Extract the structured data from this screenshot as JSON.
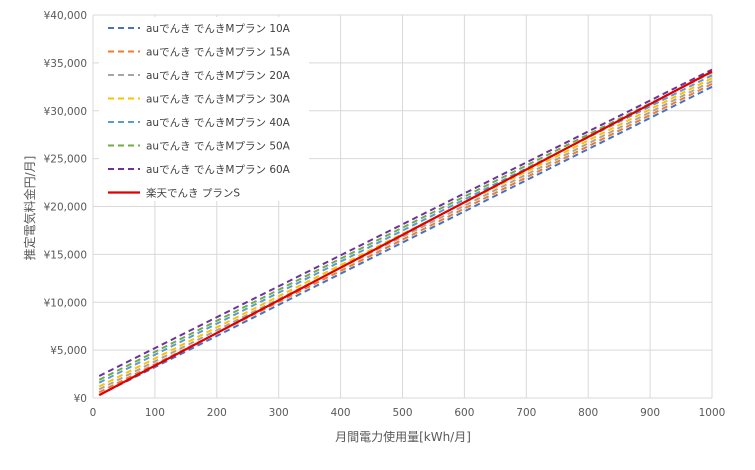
{
  "chart_data": {
    "type": "line",
    "title": "",
    "xlabel": "月間電力使用量[kWh/月]",
    "ylabel": "推定電気料金円/月]",
    "xlim": [
      0,
      1000
    ],
    "ylim": [
      0,
      40000
    ],
    "x_ticks": [
      "0",
      "100",
      "200",
      "300",
      "400",
      "500",
      "600",
      "700",
      "800",
      "900",
      "1000"
    ],
    "y_ticks": [
      "¥0",
      "¥5,000",
      "¥10,000",
      "¥15,000",
      "¥20,000",
      "¥25,000",
      "¥30,000",
      "¥35,000",
      "¥40,000"
    ],
    "grid": true,
    "legend_position": "top-left",
    "series": [
      {
        "name": "auでんき でんきMプラン 10A",
        "color": "#4472C4",
        "dash": true,
        "x": [
          10,
          1000
        ],
        "y": [
          300,
          32500
        ]
      },
      {
        "name": "auでんき でんきMプラン 15A",
        "color": "#ED7D31",
        "dash": true,
        "x": [
          10,
          1000
        ],
        "y": [
          600,
          32800
        ]
      },
      {
        "name": "auでんき でんきMプラン 20A",
        "color": "#A5A5A5",
        "dash": true,
        "x": [
          10,
          1000
        ],
        "y": [
          900,
          33100
        ]
      },
      {
        "name": "auでんき でんきMプラン 30A",
        "color": "#FFC000",
        "dash": true,
        "x": [
          10,
          1000
        ],
        "y": [
          1200,
          33400
        ]
      },
      {
        "name": "auでんき でんきMプラン 40A",
        "color": "#5B9BD5",
        "dash": true,
        "x": [
          10,
          1000
        ],
        "y": [
          1600,
          33700
        ]
      },
      {
        "name": "auでんき でんきMプラン 50A",
        "color": "#70AD47",
        "dash": true,
        "x": [
          10,
          1000
        ],
        "y": [
          1900,
          34000
        ]
      },
      {
        "name": "auでんき でんきMプラン 60A",
        "color": "#7030A0",
        "dash": true,
        "x": [
          10,
          1000
        ],
        "y": [
          2300,
          34300
        ]
      },
      {
        "name": "楽天でんき プランS",
        "color": "#E00000",
        "dash": false,
        "x": [
          10,
          1000
        ],
        "y": [
          300,
          34100
        ]
      }
    ]
  }
}
